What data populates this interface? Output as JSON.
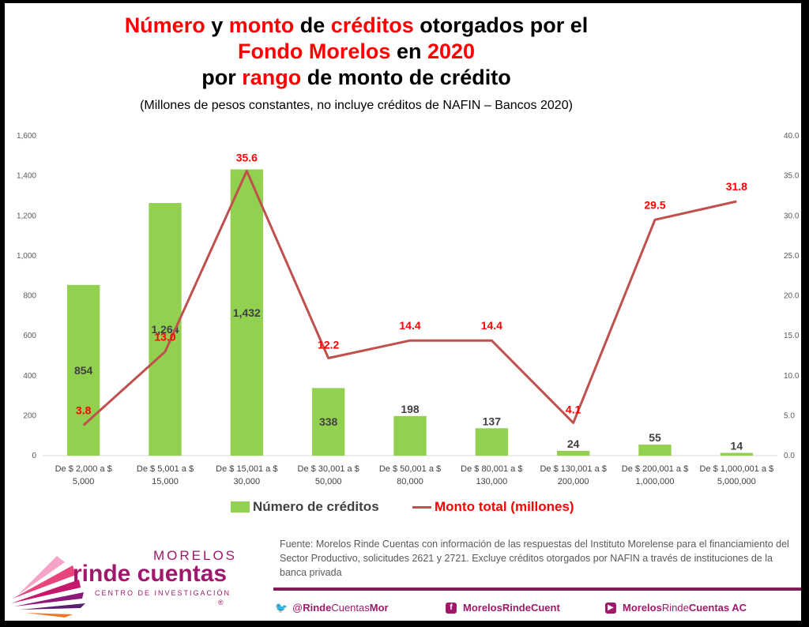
{
  "title": {
    "line1": [
      {
        "t": "Número",
        "c": "red"
      },
      {
        "t": " y ",
        "c": "blk"
      },
      {
        "t": "monto",
        "c": "red"
      },
      {
        "t": " de ",
        "c": "blk"
      },
      {
        "t": "créditos",
        "c": "red"
      },
      {
        "t": " otorgados por el",
        "c": "blk"
      }
    ],
    "line2": [
      {
        "t": "Fondo Morelos",
        "c": "red"
      },
      {
        "t": " en ",
        "c": "blk"
      },
      {
        "t": "2020",
        "c": "red"
      }
    ],
    "line3": [
      {
        "t": "por ",
        "c": "blk"
      },
      {
        "t": "rango",
        "c": "red"
      },
      {
        "t": " de monto de crédito",
        "c": "blk"
      }
    ]
  },
  "subtitle": "(Millones de pesos constantes, no incluye créditos de NAFIN – Bancos 2020)",
  "chart_data": {
    "type": "bar",
    "categories": [
      [
        "De $ 2,000 a $",
        "5,000"
      ],
      [
        "De $ 5,001 a $",
        "15,000"
      ],
      [
        "De $ 15,001 a $",
        "30,000"
      ],
      [
        "De $ 30,001 a $",
        "50,000"
      ],
      [
        "De $ 50,001 a $",
        "80,000"
      ],
      [
        "De $ 80,001 a $",
        "130,000"
      ],
      [
        "De $ 130,001 a $",
        "200,000"
      ],
      [
        "De $ 200,001 a $",
        "1,000,000"
      ],
      [
        "De $ 1,000,001 a $",
        "5,000,000"
      ]
    ],
    "series": [
      {
        "name": "Número de créditos",
        "type": "bar",
        "axis": "left",
        "color": "#92d050",
        "values": [
          854,
          1264,
          1432,
          338,
          198,
          137,
          24,
          55,
          14
        ],
        "labels": [
          "854",
          "1,264",
          "1,432",
          "338",
          "198",
          "137",
          "24",
          "55",
          "14"
        ]
      },
      {
        "name": "Monto total (millones)",
        "type": "line",
        "axis": "right",
        "color": "#c0504d",
        "label_color": "#ff0000",
        "values": [
          3.8,
          13.0,
          35.6,
          12.2,
          14.4,
          14.4,
          4.1,
          29.5,
          31.8
        ],
        "labels": [
          "3.8",
          "13.0",
          "35.6",
          "12.2",
          "14.4",
          "14.4",
          "4.1",
          "29.5",
          "31.8"
        ]
      }
    ],
    "y_left": {
      "lim": [
        0,
        1600
      ],
      "ticks": [
        "0",
        "200",
        "400",
        "600",
        "800",
        "1,000",
        "1,200",
        "1,400",
        "1,600"
      ]
    },
    "y_right": {
      "lim": [
        0,
        40
      ],
      "ticks": [
        "0.0",
        "5.0",
        "10.0",
        "15.0",
        "20.0",
        "25.0",
        "30.0",
        "35.0",
        "40.0"
      ]
    },
    "grid": false,
    "legend": "bottom"
  },
  "footer": {
    "logo": {
      "top": "MORELOS",
      "main": "rinde cuentas",
      "sub": "CENTRO DE INVESTIGACIÓN",
      "reg": "®"
    },
    "source": "Fuente: Morelos Rinde Cuentas con información de las respuestas del Instituto Morelense para el financiamiento del Sector Productivo, solicitudes 2621 y 2721. Excluye créditos otorgados por NAFIN a través de instituciones de la banca privada",
    "social": [
      {
        "icon": "twitter-icon",
        "pre": "@",
        "bold1": "Rinde",
        "mid": "Cuentas",
        "bold2": "Mor"
      },
      {
        "icon": "facebook-icon",
        "pre": "",
        "bold1": "MorelosRindeCuent",
        "mid": "",
        "bold2": ""
      },
      {
        "icon": "youtube-icon",
        "pre": "",
        "bold1": "Morelos",
        "mid": " Rinde ",
        "bold2": "Cuentas AC"
      }
    ]
  }
}
